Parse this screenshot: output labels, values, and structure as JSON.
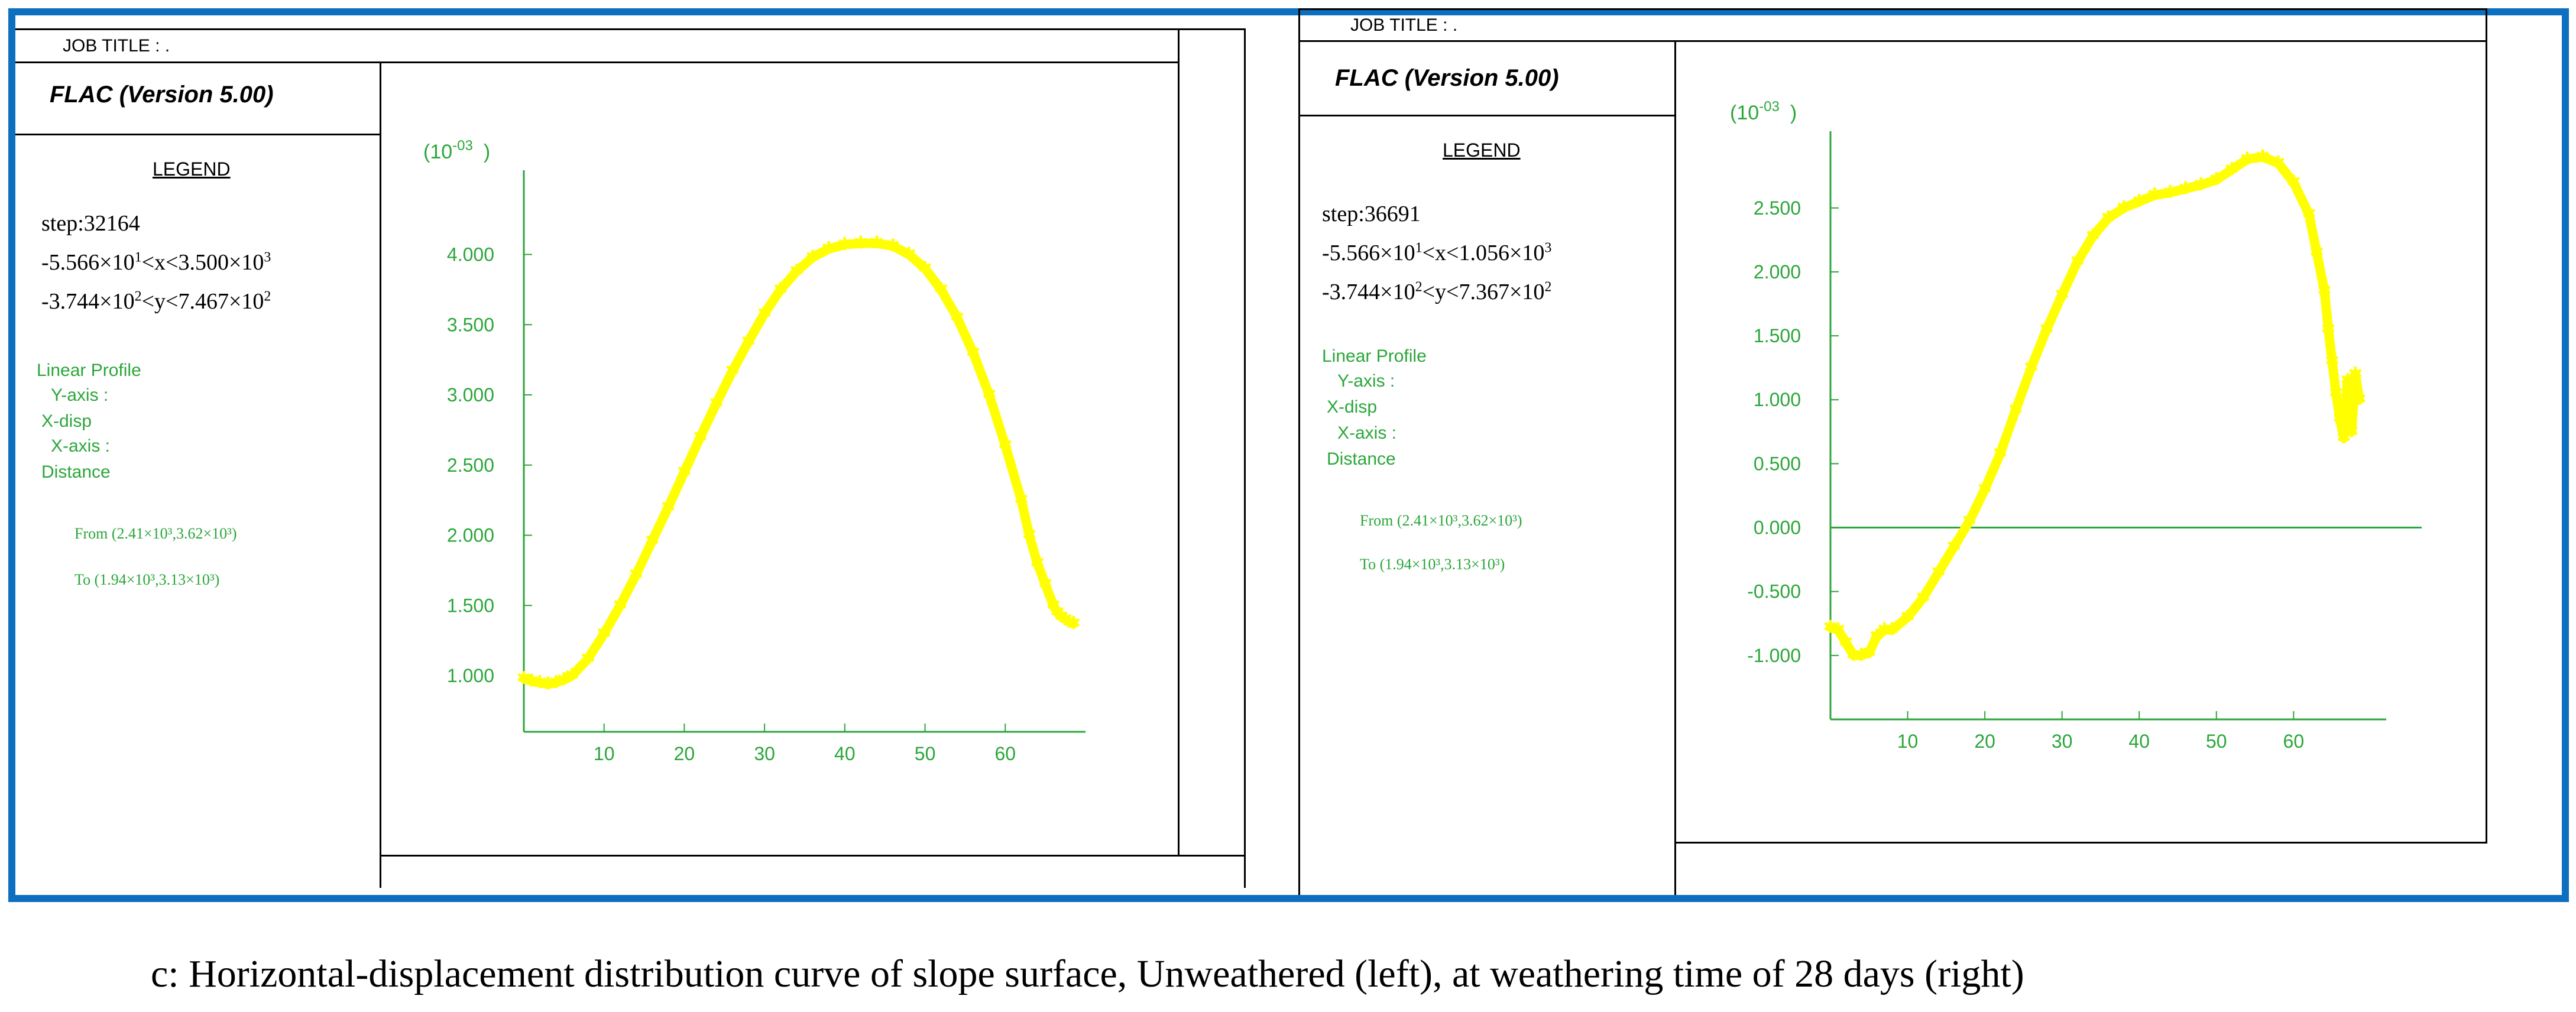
{
  "common": {
    "job_title": "JOB TITLE : .",
    "software": "FLAC (Version 5.00)",
    "legend_heading": "LEGEND",
    "profile_title": "Linear Profile",
    "y_axis_label": "Y-axis :",
    "y_axis_value": "X-disp",
    "x_axis_label": "X-axis :",
    "x_axis_value": "Distance",
    "from_label": "From (2.41×10³,3.62×10³)",
    "to_label": "To (1.94×10³,3.13×10³)",
    "exponent_label": "(10",
    "exponent_sup": "-03",
    "exponent_close": ")",
    "line_color": "#000000",
    "text_green": "#2ba63a",
    "curve_color": "#ffff00",
    "frame_color": "#0d6fc0"
  },
  "panels": [
    {
      "step": "step:32164",
      "x_range": {
        "a": "-5.566×10",
        "a_sup": "1",
        "b": "<x<3.500×10",
        "b_sup": "3"
      },
      "y_range": {
        "a": "-3.744×10",
        "a_sup": "2",
        "b": "<y<7.467×10",
        "b_sup": "2"
      }
    },
    {
      "step": "step:36691",
      "x_range": {
        "a": "-5.566×10",
        "a_sup": "1",
        "b": "<x<1.056×10",
        "b_sup": "3"
      },
      "y_range": {
        "a": "-3.744×10",
        "a_sup": "2",
        "b": "<y<7.367×10",
        "b_sup": "2"
      }
    }
  ],
  "chart_data": [
    {
      "type": "scatter",
      "title": "",
      "xlabel": "",
      "ylabel": "",
      "x_ticks": [
        10,
        20,
        30,
        40,
        50,
        60
      ],
      "y_ticks": [
        "1.000",
        "1.500",
        "2.000",
        "2.500",
        "3.000",
        "3.500",
        "4.000"
      ],
      "xlim": [
        0,
        70
      ],
      "ylim": [
        0.6,
        4.6
      ],
      "grid": false,
      "series": [
        {
          "color": "#ffff00",
          "x": [
            0,
            1,
            2,
            3,
            4,
            5,
            6,
            8,
            10,
            12,
            14,
            16,
            18,
            20,
            22,
            24,
            26,
            28,
            30,
            32,
            34,
            36,
            38,
            40,
            42,
            44,
            46,
            48,
            50,
            52,
            54,
            56,
            58,
            60,
            62,
            63,
            64,
            65,
            66,
            66.5,
            67,
            67.5,
            68,
            68.5
          ],
          "y": [
            0.98,
            0.96,
            0.95,
            0.94,
            0.95,
            0.97,
            1.0,
            1.12,
            1.3,
            1.5,
            1.72,
            1.96,
            2.2,
            2.45,
            2.7,
            2.94,
            3.17,
            3.38,
            3.58,
            3.75,
            3.88,
            3.98,
            4.04,
            4.07,
            4.08,
            4.08,
            4.06,
            4.0,
            3.9,
            3.75,
            3.55,
            3.3,
            3.0,
            2.64,
            2.25,
            2.0,
            1.8,
            1.65,
            1.5,
            1.45,
            1.42,
            1.4,
            1.38,
            1.37
          ]
        }
      ]
    },
    {
      "type": "scatter",
      "title": "",
      "xlabel": "",
      "ylabel": "",
      "x_ticks": [
        10,
        20,
        30,
        40,
        50,
        60
      ],
      "y_ticks": [
        "-1.000",
        "-0.500",
        "0.000",
        "0.500",
        "1.000",
        "1.500",
        "2.000",
        "2.500"
      ],
      "xlim": [
        0,
        72
      ],
      "ylim": [
        -1.5,
        3.1
      ],
      "grid": false,
      "zero_line": true,
      "series": [
        {
          "color": "#ffff00",
          "x": [
            0,
            1,
            2,
            3,
            4,
            5,
            6,
            7,
            8,
            10,
            12,
            14,
            16,
            18,
            20,
            22,
            24,
            26,
            28,
            30,
            32,
            34,
            36,
            38,
            40,
            42,
            44,
            46,
            48,
            50,
            52,
            54,
            56,
            58,
            60,
            62,
            63,
            64,
            64.5,
            65,
            65.5,
            66,
            66.5,
            67,
            67.5,
            68,
            68.5
          ],
          "y": [
            -0.78,
            -0.8,
            -0.9,
            -1.0,
            -1.0,
            -0.98,
            -0.85,
            -0.8,
            -0.8,
            -0.7,
            -0.55,
            -0.35,
            -0.15,
            0.05,
            0.3,
            0.58,
            0.92,
            1.25,
            1.55,
            1.82,
            2.08,
            2.28,
            2.42,
            2.5,
            2.55,
            2.6,
            2.62,
            2.65,
            2.68,
            2.72,
            2.8,
            2.88,
            2.9,
            2.85,
            2.7,
            2.45,
            2.15,
            1.85,
            1.55,
            1.3,
            1.05,
            0.85,
            0.7,
            1.15,
            0.75,
            1.2,
            1.0
          ]
        }
      ]
    }
  ],
  "caption": "c: Horizontal-displacement distribution curve of slope surface, Unweathered (left), at weathering time of 28 days (right)"
}
